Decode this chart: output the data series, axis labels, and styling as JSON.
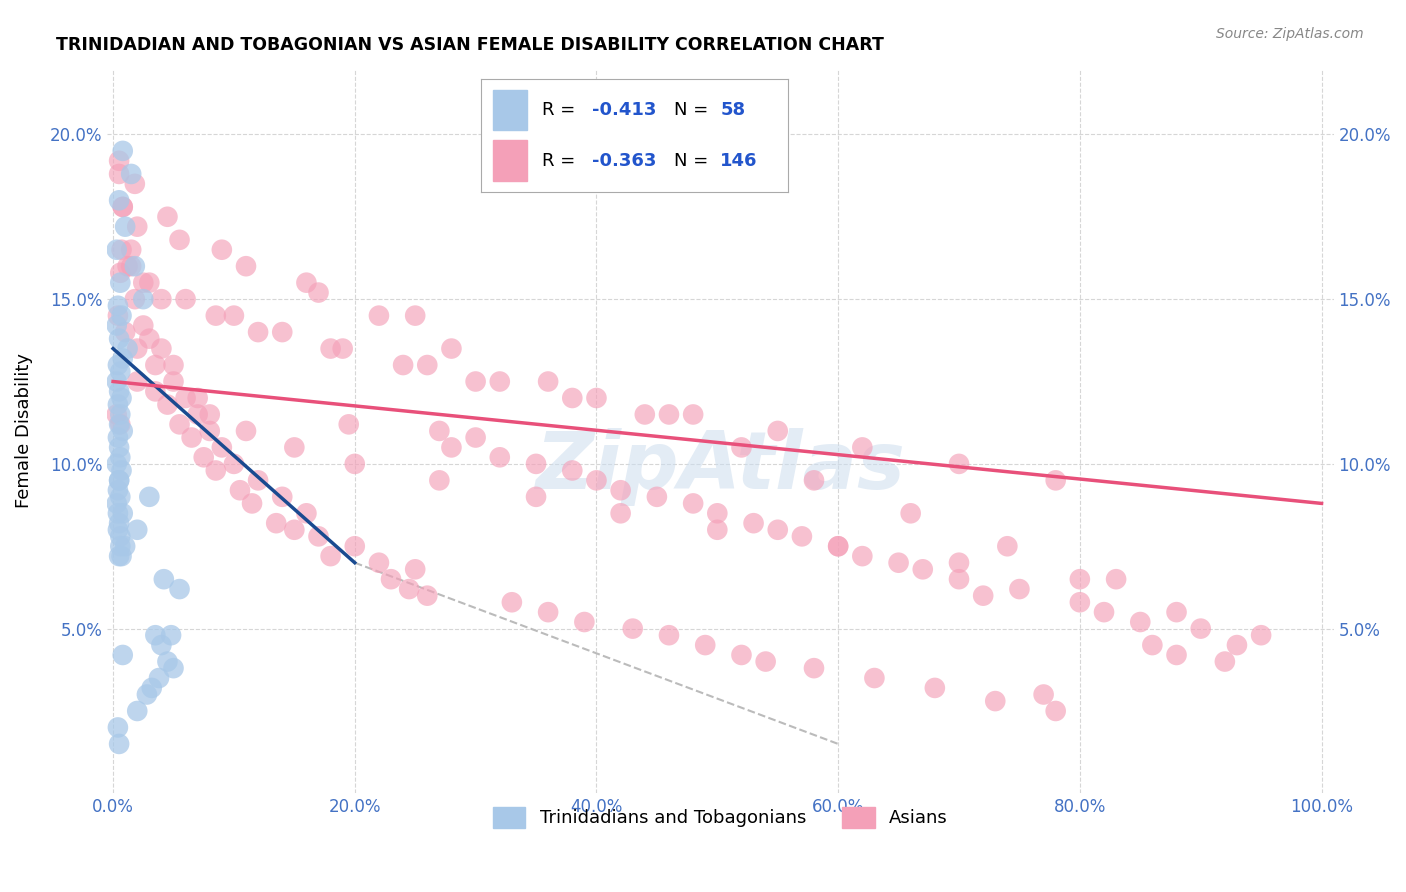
{
  "title": "TRINIDADIAN AND TOBAGONIAN VS ASIAN FEMALE DISABILITY CORRELATION CHART",
  "source": "Source: ZipAtlas.com",
  "ylabel": "Female Disability",
  "xlim": [
    -0.5,
    101
  ],
  "ylim": [
    0,
    22
  ],
  "legend_r1_val": "-0.413",
  "legend_n1_val": "58",
  "legend_r2_val": "-0.363",
  "legend_n2_val": "146",
  "color_blue": "#A8C8E8",
  "color_pink": "#F4A0B8",
  "trendline_blue": "#1A4A90",
  "trendline_pink": "#E8507A",
  "trendline_dashed_color": "#BBBBBB",
  "legend_text_color": "#2255CC",
  "tick_color": "#4472C4",
  "watermark": "ZipAtlas",
  "xtick_labels": [
    "0.0%",
    "20.0%",
    "40.0%",
    "60.0%",
    "80.0%",
    "100.0%"
  ],
  "xtick_values": [
    0,
    20,
    40,
    60,
    80,
    100
  ],
  "ytick_labels": [
    "5.0%",
    "10.0%",
    "15.0%",
    "20.0%"
  ],
  "ytick_values": [
    5,
    10,
    15,
    20
  ],
  "series1_label": "Trinidadians and Tobagonians",
  "series2_label": "Asians",
  "blue_points_x": [
    0.8,
    1.5,
    0.5,
    1.0,
    0.3,
    1.8,
    0.6,
    2.5,
    0.4,
    0.7,
    0.3,
    0.5,
    1.2,
    0.8,
    0.4,
    0.6,
    0.3,
    0.5,
    0.7,
    0.4,
    0.6,
    0.5,
    0.8,
    0.4,
    0.5,
    0.6,
    0.3,
    0.7,
    0.5,
    0.4,
    0.6,
    0.3,
    0.8,
    0.5,
    0.4,
    0.6,
    1.0,
    0.7,
    0.5,
    3.0,
    0.4,
    2.0,
    0.6,
    0.5,
    3.5,
    4.0,
    0.8,
    4.5,
    5.0,
    3.8,
    3.2,
    2.8,
    2.0,
    0.4,
    0.5,
    4.2,
    4.8,
    5.5
  ],
  "blue_points_y": [
    19.5,
    18.8,
    18.0,
    17.2,
    16.5,
    16.0,
    15.5,
    15.0,
    14.8,
    14.5,
    14.2,
    13.8,
    13.5,
    13.2,
    13.0,
    12.8,
    12.5,
    12.2,
    12.0,
    11.8,
    11.5,
    11.2,
    11.0,
    10.8,
    10.5,
    10.2,
    10.0,
    9.8,
    9.5,
    9.2,
    9.0,
    8.8,
    8.5,
    8.2,
    8.0,
    7.8,
    7.5,
    7.2,
    9.5,
    9.0,
    8.5,
    8.0,
    7.5,
    7.2,
    4.8,
    4.5,
    4.2,
    4.0,
    3.8,
    3.5,
    3.2,
    3.0,
    2.5,
    2.0,
    1.5,
    6.5,
    4.8,
    6.2
  ],
  "pink_points_x": [
    0.5,
    0.8,
    1.5,
    0.6,
    1.2,
    1.8,
    2.5,
    3.0,
    4.0,
    5.0,
    2.0,
    3.5,
    6.0,
    4.5,
    7.0,
    5.5,
    8.0,
    6.5,
    9.0,
    7.5,
    10.0,
    8.5,
    12.0,
    10.5,
    14.0,
    11.5,
    16.0,
    13.5,
    15.0,
    17.0,
    20.0,
    18.0,
    22.0,
    25.0,
    19.5,
    23.0,
    27.0,
    30.0,
    24.5,
    28.0,
    32.0,
    35.0,
    26.0,
    38.0,
    40.0,
    33.0,
    42.0,
    36.0,
    45.0,
    39.0,
    48.0,
    43.0,
    50.0,
    46.0,
    53.0,
    49.0,
    55.0,
    52.0,
    57.0,
    60.0,
    54.0,
    62.0,
    58.0,
    65.0,
    63.0,
    67.0,
    70.0,
    75.0,
    68.0,
    72.0,
    80.0,
    77.0,
    73.0,
    82.0,
    85.0,
    90.0,
    95.0,
    78.0,
    86.0,
    88.0,
    92.0,
    0.4,
    1.0,
    2.0,
    3.5,
    5.0,
    7.0,
    0.3,
    0.6,
    8.0,
    11.0,
    15.0,
    20.0,
    27.0,
    35.0,
    42.0,
    50.0,
    60.0,
    70.0,
    80.0,
    0.7,
    1.5,
    3.0,
    6.0,
    10.0,
    14.0,
    19.0,
    26.0,
    32.0,
    40.0,
    48.0,
    55.0,
    62.0,
    70.0,
    78.0,
    2.5,
    4.0,
    8.5,
    12.0,
    18.0,
    24.0,
    30.0,
    38.0,
    46.0,
    0.5,
    1.8,
    4.5,
    9.0,
    16.0,
    22.0,
    28.0,
    36.0,
    44.0,
    52.0,
    58.0,
    66.0,
    74.0,
    83.0,
    88.0,
    93.0,
    0.8,
    2.0,
    5.5,
    11.0,
    17.0,
    25.0
  ],
  "pink_points_y": [
    18.8,
    17.8,
    16.5,
    15.8,
    16.0,
    15.0,
    14.2,
    13.8,
    13.5,
    13.0,
    12.5,
    12.2,
    12.0,
    11.8,
    11.5,
    11.2,
    11.0,
    10.8,
    10.5,
    10.2,
    10.0,
    9.8,
    9.5,
    9.2,
    9.0,
    8.8,
    8.5,
    8.2,
    8.0,
    7.8,
    7.5,
    7.2,
    7.0,
    6.8,
    11.2,
    6.5,
    11.0,
    10.8,
    6.2,
    10.5,
    10.2,
    10.0,
    6.0,
    9.8,
    9.5,
    5.8,
    9.2,
    5.5,
    9.0,
    5.2,
    8.8,
    5.0,
    8.5,
    4.8,
    8.2,
    4.5,
    8.0,
    4.2,
    7.8,
    7.5,
    4.0,
    7.2,
    3.8,
    7.0,
    3.5,
    6.8,
    6.5,
    6.2,
    3.2,
    6.0,
    5.8,
    3.0,
    2.8,
    5.5,
    5.2,
    5.0,
    4.8,
    2.5,
    4.5,
    4.2,
    4.0,
    14.5,
    14.0,
    13.5,
    13.0,
    12.5,
    12.0,
    11.5,
    11.2,
    11.5,
    11.0,
    10.5,
    10.0,
    9.5,
    9.0,
    8.5,
    8.0,
    7.5,
    7.0,
    6.5,
    16.5,
    16.0,
    15.5,
    15.0,
    14.5,
    14.0,
    13.5,
    13.0,
    12.5,
    12.0,
    11.5,
    11.0,
    10.5,
    10.0,
    9.5,
    15.5,
    15.0,
    14.5,
    14.0,
    13.5,
    13.0,
    12.5,
    12.0,
    11.5,
    19.2,
    18.5,
    17.5,
    16.5,
    15.5,
    14.5,
    13.5,
    12.5,
    11.5,
    10.5,
    9.5,
    8.5,
    7.5,
    6.5,
    5.5,
    4.5,
    17.8,
    17.2,
    16.8,
    16.0,
    15.2,
    14.5
  ],
  "blue_trend_x": [
    0,
    20
  ],
  "blue_trend_y": [
    13.5,
    7.0
  ],
  "pink_trend_x": [
    0,
    100
  ],
  "pink_trend_y": [
    12.5,
    8.8
  ],
  "dashed_trend_x": [
    20,
    60
  ],
  "dashed_trend_y": [
    7.0,
    1.5
  ]
}
